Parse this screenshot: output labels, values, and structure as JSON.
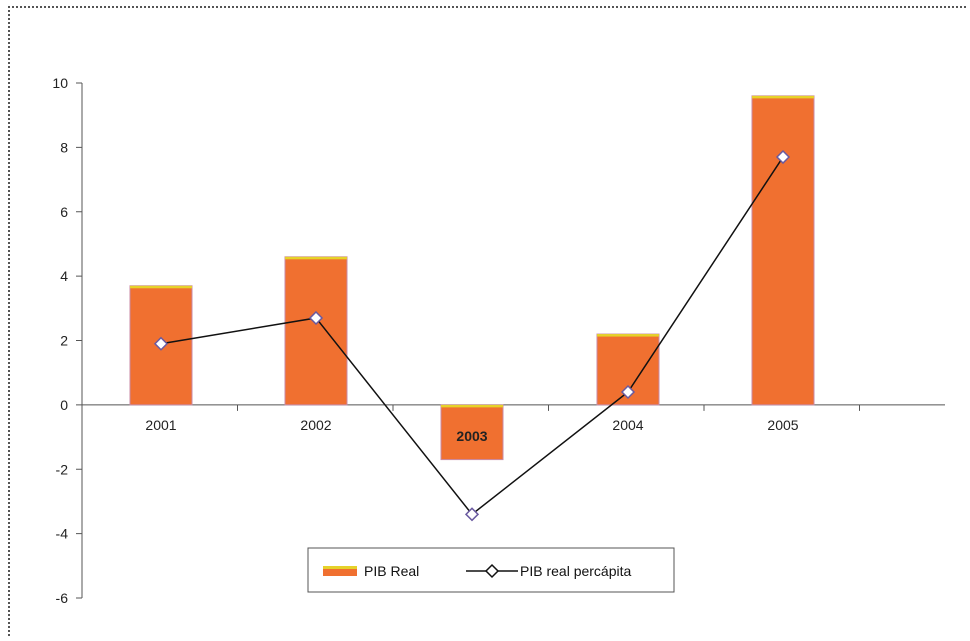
{
  "chart_data": {
    "type": "bar",
    "categories": [
      "2001",
      "2002",
      "2003",
      "2004",
      "2005"
    ],
    "series": [
      {
        "name": "PIB Real",
        "kind": "bar",
        "values": [
          3.7,
          4.6,
          -1.7,
          2.2,
          9.6
        ],
        "color": "#f07030"
      },
      {
        "name": "PIB real percápita",
        "kind": "line",
        "values": [
          1.9,
          2.7,
          -3.4,
          0.4,
          7.7
        ],
        "color": "#111111",
        "marker": "diamond"
      }
    ],
    "xlabel": "",
    "ylabel": "",
    "ylim": [
      -6,
      10
    ],
    "yticks": [
      10,
      8,
      6,
      4,
      2,
      0,
      -2,
      -4,
      -6
    ],
    "grid": false,
    "legend": {
      "placement": "bottom-center"
    },
    "colors": {
      "bar_fill": "#f07030",
      "bar_top": "#e6d22a",
      "bar_edge": "#c98aa6",
      "marker_fill": "#ffffff",
      "marker_edge": "#6a5aa0",
      "axis": "#555555"
    }
  }
}
